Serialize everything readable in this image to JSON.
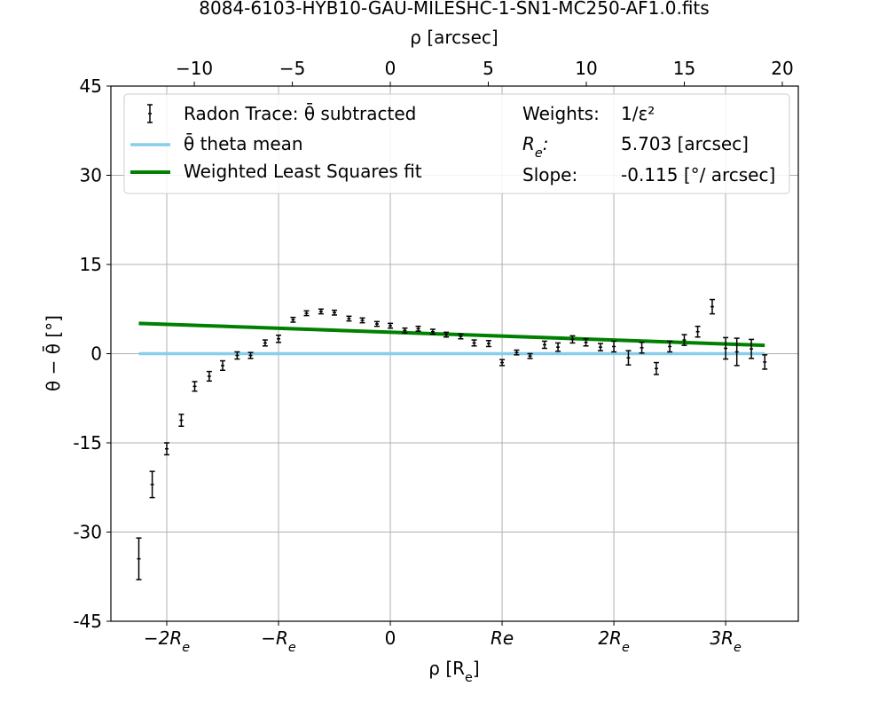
{
  "chart_data": {
    "type": "scatter",
    "title": "8084-6103-HYB10-GAU-MILESHC-1-SN1-MC250-AF1.0.fits",
    "xlabel": "ρ [R_e]",
    "x2label": "ρ [arcsec]",
    "ylabel": "θ − θ̄ [°]",
    "xlim": [
      -2.5,
      3.65
    ],
    "ylim": [
      -45,
      45
    ],
    "grid": true,
    "legend_position": "top",
    "yticks": [
      {
        "value": -45,
        "label": "-45"
      },
      {
        "value": -30,
        "label": "-30"
      },
      {
        "value": -15,
        "label": "-15"
      },
      {
        "value": 0,
        "label": "0"
      },
      {
        "value": 15,
        "label": "15"
      },
      {
        "value": 30,
        "label": "30"
      },
      {
        "value": 45,
        "label": "45"
      }
    ],
    "xticks": [
      {
        "value": -2,
        "label": "−2R_e"
      },
      {
        "value": -1,
        "label": "−R_e"
      },
      {
        "value": 0,
        "label": "0"
      },
      {
        "value": 1,
        "label": "Re"
      },
      {
        "value": 2,
        "label": "2R_e"
      },
      {
        "value": 3,
        "label": "3R_e"
      }
    ],
    "x2ticks": [
      {
        "value": -10,
        "label": "−10"
      },
      {
        "value": -5,
        "label": "−5"
      },
      {
        "value": 0,
        "label": "0"
      },
      {
        "value": 5,
        "label": "5"
      },
      {
        "value": 10,
        "label": "10"
      },
      {
        "value": 15,
        "label": "15"
      },
      {
        "value": 20,
        "label": "20"
      }
    ],
    "Re_arcsec": 5.703,
    "legend": {
      "points_label": "Radon Trace: θ̄ subtracted",
      "mean_label": "θ̄ theta mean",
      "fit_label": "Weighted Least Squares fit"
    },
    "info": {
      "weights_label": "Weights:",
      "weights_value": "1/ε²",
      "re_label": "R_e:",
      "re_value": "5.703 [arcsec]",
      "slope_label": "Slope:",
      "slope_value": "-0.115 [°/ arcsec]"
    },
    "colors": {
      "points": "#000000",
      "mean": "#87ceeb",
      "fit": "#008000",
      "grid": "#b0b0b0"
    },
    "mean_line": {
      "x": [
        -2.25,
        3.35
      ],
      "y": [
        0,
        0
      ]
    },
    "fit_line": {
      "x": [
        -2.25,
        3.35
      ],
      "y": [
        5.1,
        1.4
      ]
    },
    "series": [
      {
        "name": "Radon Trace: θ̄ subtracted",
        "x": [
          -2.25,
          -2.13,
          -2.0,
          -1.87,
          -1.75,
          -1.62,
          -1.5,
          -1.37,
          -1.25,
          -1.12,
          -1.0,
          -0.87,
          -0.75,
          -0.62,
          -0.5,
          -0.37,
          -0.25,
          -0.12,
          0.0,
          0.13,
          0.25,
          0.38,
          0.5,
          0.63,
          0.75,
          0.88,
          1.0,
          1.13,
          1.25,
          1.38,
          1.5,
          1.63,
          1.75,
          1.88,
          2.0,
          2.13,
          2.25,
          2.38,
          2.5,
          2.63,
          2.75,
          2.88,
          3.0,
          3.1,
          3.23,
          3.35
        ],
        "y": [
          -34.5,
          -22.0,
          -16.0,
          -11.2,
          -5.5,
          -3.8,
          -2.0,
          -0.3,
          -0.3,
          1.8,
          2.5,
          5.7,
          6.8,
          7.1,
          6.9,
          5.9,
          5.6,
          5.0,
          4.7,
          3.9,
          4.2,
          3.7,
          3.2,
          2.9,
          1.8,
          1.7,
          -1.5,
          0.2,
          -0.4,
          1.5,
          1.1,
          2.4,
          1.9,
          1.1,
          1.2,
          -0.7,
          1.0,
          -2.5,
          1.2,
          2.3,
          3.7,
          7.9,
          0.9,
          0.3,
          0.8,
          -1.4
        ],
        "yerr": [
          3.5,
          2.2,
          1.0,
          1.0,
          0.8,
          0.8,
          0.8,
          0.6,
          0.5,
          0.5,
          0.6,
          0.4,
          0.4,
          0.4,
          0.4,
          0.4,
          0.4,
          0.4,
          0.4,
          0.4,
          0.4,
          0.4,
          0.4,
          0.4,
          0.5,
          0.5,
          0.5,
          0.4,
          0.4,
          0.6,
          0.7,
          0.6,
          0.6,
          0.6,
          0.9,
          1.2,
          0.9,
          1.0,
          0.9,
          0.9,
          0.9,
          1.2,
          1.8,
          2.3,
          1.6,
          1.2
        ]
      }
    ]
  }
}
